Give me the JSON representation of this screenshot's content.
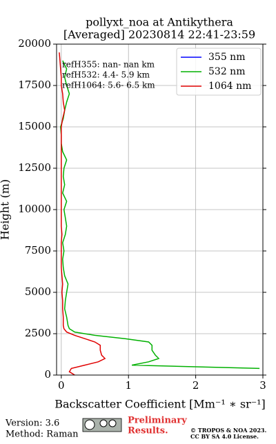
{
  "chart_data": {
    "type": "line",
    "title": [
      "pollyxt_noa at Antikythera",
      "[Averaged] 20230814 22:41-23:59"
    ],
    "x_label": "Backscatter Coefficient [Mm⁻¹ ∗ sr⁻¹]",
    "y_label": "Height (m)",
    "annotations": [
      "refH355:  nan- nan km",
      "refH532:  4.4- 5.9 km",
      "refH1064:  5.6- 6.5 km"
    ],
    "xlim": [
      -0.07,
      3
    ],
    "xticks": [
      0,
      1,
      2,
      3
    ],
    "ylim": [
      0,
      20000
    ],
    "yticks": [
      0,
      2500,
      5000,
      7500,
      10000,
      12500,
      15000,
      17500,
      20000
    ],
    "grid": true,
    "legend": "upper right",
    "y": [
      0,
      200,
      400,
      600,
      800,
      1000,
      1200,
      1500,
      1800,
      2000,
      2200,
      2400,
      2600,
      2800,
      3000,
      3500,
      4000,
      4500,
      5000,
      5500,
      6000,
      6500,
      7000,
      7500,
      8000,
      8500,
      9000,
      9500,
      10000,
      10500,
      11000,
      11500,
      12000,
      12500,
      13000,
      13500,
      14000,
      14500,
      15000,
      15500,
      16000,
      16500,
      17000,
      17500,
      18000,
      18500,
      19000,
      19500,
      20000
    ],
    "series": [
      {
        "name": "355 nm",
        "color": "#0000ff",
        "values": [
          null,
          null,
          null,
          null,
          null,
          null,
          null,
          null,
          null,
          null,
          null,
          null,
          null,
          null,
          null,
          null,
          null,
          null,
          null,
          null,
          null,
          null,
          null,
          null,
          null,
          null,
          null,
          null,
          null,
          null,
          null,
          null,
          null,
          null,
          null,
          null,
          null,
          null,
          null,
          null,
          null,
          null,
          null,
          null,
          null,
          null,
          null,
          null,
          null
        ]
      },
      {
        "name": "532 nm",
        "color": "#00b000",
        "values": [
          null,
          null,
          2.95,
          1.05,
          1.3,
          1.45,
          1.4,
          1.35,
          1.35,
          1.3,
          0.95,
          0.5,
          0.2,
          0.12,
          0.1,
          0.08,
          0.05,
          0.06,
          0.08,
          0.1,
          0.05,
          0.03,
          0.02,
          0.04,
          0.02,
          0.06,
          0.08,
          0.06,
          0.04,
          0.08,
          0.02,
          0.05,
          0.03,
          0.04,
          0.08,
          0.02,
          0.0,
          0.0,
          -0.01,
          0.03,
          0.05,
          0.08,
          0.12,
          0.08,
          0.05,
          0.08,
          0.02,
          null,
          null
        ]
      },
      {
        "name": "1064 nm",
        "color": "#e00000",
        "values": [
          0.2,
          0.12,
          0.15,
          0.35,
          0.55,
          0.65,
          0.6,
          0.58,
          0.58,
          0.5,
          0.35,
          0.2,
          0.08,
          0.04,
          0.03,
          0.03,
          0.02,
          0.02,
          0.01,
          0.02,
          0.01,
          0.0,
          0.0,
          0.0,
          0.0,
          0.01,
          0.0,
          0.0,
          0.0,
          0.0,
          0.0,
          0.0,
          0.0,
          0.0,
          0.0,
          0.0,
          0.0,
          0.0,
          0.0,
          0.02,
          0.05,
          0.03,
          0.02,
          0.0,
          0.0,
          -0.01,
          -0.02,
          -0.03,
          null
        ]
      }
    ]
  },
  "footer": {
    "version": "Version: 3.6",
    "method": "Method: Raman",
    "preliminary": [
      "Preliminary",
      "Results."
    ],
    "copyright": [
      "© TROPOS & NOA 2023.",
      "CC BY SA 4.0 License."
    ]
  }
}
